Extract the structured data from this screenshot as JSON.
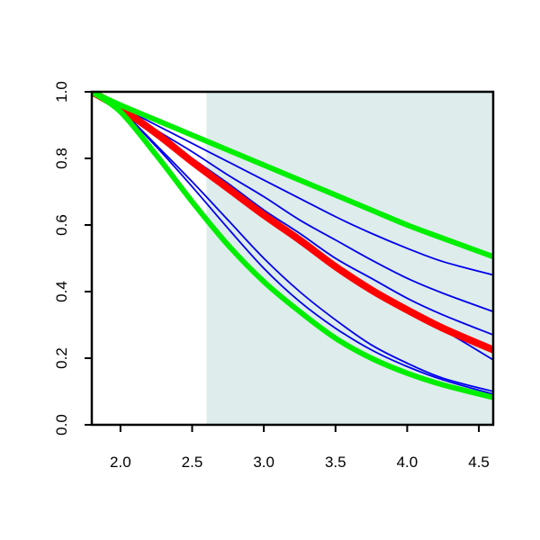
{
  "chart_data": {
    "type": "line",
    "title": "",
    "xlabel": "",
    "ylabel": "",
    "xlim": [
      1.8,
      4.6
    ],
    "ylim": [
      0.0,
      1.0
    ],
    "x_ticks": [
      "2.0",
      "2.5",
      "3.0",
      "3.5",
      "4.0",
      "4.5"
    ],
    "y_ticks": [
      "0.0",
      "0.2",
      "0.4",
      "0.6",
      "0.8",
      "1.0"
    ],
    "shaded_region": {
      "x_from": 2.6,
      "x_to": 4.6,
      "color": "#deecec"
    },
    "grid": false,
    "legend": "none",
    "x": [
      1.8,
      2.0,
      2.25,
      2.5,
      2.75,
      3.0,
      3.25,
      3.5,
      3.75,
      4.0,
      4.25,
      4.6
    ],
    "series": [
      {
        "role": "bound",
        "color": "#00ee00",
        "width": 6,
        "values": [
          1.0,
          0.94,
          0.81,
          0.67,
          0.54,
          0.43,
          0.34,
          0.26,
          0.2,
          0.155,
          0.12,
          0.082
        ]
      },
      {
        "role": "bound",
        "color": "#00ee00",
        "width": 6,
        "values": [
          1.0,
          0.96,
          0.915,
          0.87,
          0.825,
          0.78,
          0.735,
          0.69,
          0.645,
          0.6,
          0.56,
          0.505
        ]
      },
      {
        "role": "central",
        "color": "#ff0000",
        "width": 8,
        "values": [
          1.0,
          0.95,
          0.875,
          0.79,
          0.71,
          0.63,
          0.555,
          0.475,
          0.405,
          0.345,
          0.29,
          0.225
        ]
      },
      {
        "role": "sample",
        "color": "#0000ee",
        "width": 1.8,
        "values": [
          1.0,
          0.955,
          0.9,
          0.845,
          0.79,
          0.735,
          0.68,
          0.625,
          0.575,
          0.53,
          0.49,
          0.45
        ]
      },
      {
        "role": "sample",
        "color": "#0000ee",
        "width": 1.8,
        "values": [
          1.0,
          0.955,
          0.885,
          0.82,
          0.75,
          0.685,
          0.615,
          0.555,
          0.495,
          0.44,
          0.395,
          0.34
        ]
      },
      {
        "role": "sample",
        "color": "#0000ee",
        "width": 1.8,
        "values": [
          1.0,
          0.95,
          0.875,
          0.8,
          0.725,
          0.645,
          0.575,
          0.5,
          0.44,
          0.38,
          0.33,
          0.27
        ]
      },
      {
        "role": "sample",
        "color": "#0000ee",
        "width": 1.8,
        "values": [
          1.0,
          0.945,
          0.865,
          0.785,
          0.705,
          0.625,
          0.545,
          0.47,
          0.4,
          0.34,
          0.285,
          0.195
        ]
      },
      {
        "role": "sample",
        "color": "#0000ee",
        "width": 1.8,
        "values": [
          1.0,
          0.945,
          0.84,
          0.73,
          0.615,
          0.5,
          0.4,
          0.315,
          0.24,
          0.185,
          0.14,
          0.1
        ]
      },
      {
        "role": "sample",
        "color": "#0000ee",
        "width": 1.8,
        "values": [
          1.0,
          0.945,
          0.835,
          0.715,
          0.59,
          0.47,
          0.37,
          0.29,
          0.225,
          0.175,
          0.135,
          0.092
        ]
      }
    ]
  }
}
